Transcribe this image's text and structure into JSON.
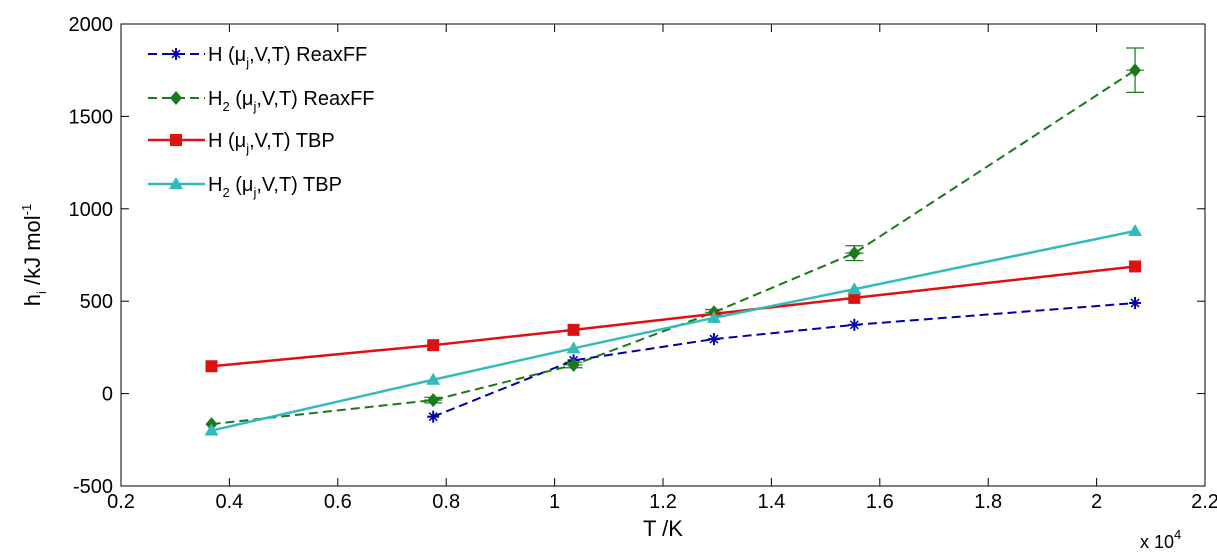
{
  "chart_data": {
    "type": "line",
    "xlabel": "T /K",
    "ylabel_main": "h",
    "ylabel_sub": "i",
    "ylabel_rest": " /kJ mol",
    "ylabel_sup": "-1",
    "x_exponent_label": "x 10",
    "x_exponent_power": "4",
    "xlim": [
      0.2,
      2.2
    ],
    "ylim": [
      -500,
      2000
    ],
    "x_scale_factor": 10000,
    "xticks": [
      "0.2",
      "0.4",
      "0.6",
      "0.8",
      "1",
      "1.2",
      "1.4",
      "1.6",
      "1.8",
      "2",
      "2.2"
    ],
    "yticks": [
      "-500",
      "0",
      "500",
      "1000",
      "1500",
      "2000"
    ],
    "legend_placement": "top-left",
    "grid": false,
    "series": [
      {
        "key": "h_reaxff",
        "legend": {
          "pre": "H",
          "sub": "",
          "post": "  (μ",
          "sub2": "j",
          "post2": ",V,T) ReaxFF"
        },
        "color": "#0000aa",
        "dash": true,
        "marker": "star",
        "x": [
          0.776,
          1.035,
          1.294,
          1.553,
          2.071
        ],
        "y": [
          -125,
          180,
          295,
          372,
          490
        ],
        "err": [
          0,
          0,
          0,
          0,
          0
        ]
      },
      {
        "key": "h2_reaxff",
        "legend": {
          "pre": "H",
          "sub": "2",
          "post": "  (μ",
          "sub2": "j",
          "post2": ",V,T) ReaxFF"
        },
        "color": "#1a7a1a",
        "dash": true,
        "marker": "diamond",
        "x": [
          0.367,
          0.776,
          1.035,
          1.294,
          1.553,
          2.071
        ],
        "y": [
          -165,
          -35,
          155,
          440,
          760,
          1750
        ],
        "err": [
          0,
          15,
          15,
          15,
          40,
          120
        ]
      },
      {
        "key": "h_tbp",
        "legend": {
          "pre": "H",
          "sub": "",
          "post": "  (μ",
          "sub2": "j",
          "post2": ",V,T) TBP"
        },
        "color": "#dd1111",
        "dash": false,
        "marker": "square",
        "x": [
          0.367,
          0.776,
          1.035,
          1.553,
          2.071
        ],
        "y": [
          148,
          262,
          345,
          518,
          688
        ],
        "err": [
          0,
          0,
          0,
          0,
          0
        ]
      },
      {
        "key": "h2_tbp",
        "legend": {
          "pre": "H",
          "sub": "2",
          "post": " (μ",
          "sub2": "j",
          "post2": ",V,T) TBP"
        },
        "color": "#33bbbb",
        "dash": false,
        "marker": "triangle",
        "x": [
          0.367,
          0.776,
          1.035,
          1.294,
          1.553,
          2.071
        ],
        "y": [
          -200,
          75,
          245,
          410,
          565,
          880
        ],
        "err": [
          0,
          0,
          0,
          0,
          0,
          0
        ]
      }
    ]
  }
}
